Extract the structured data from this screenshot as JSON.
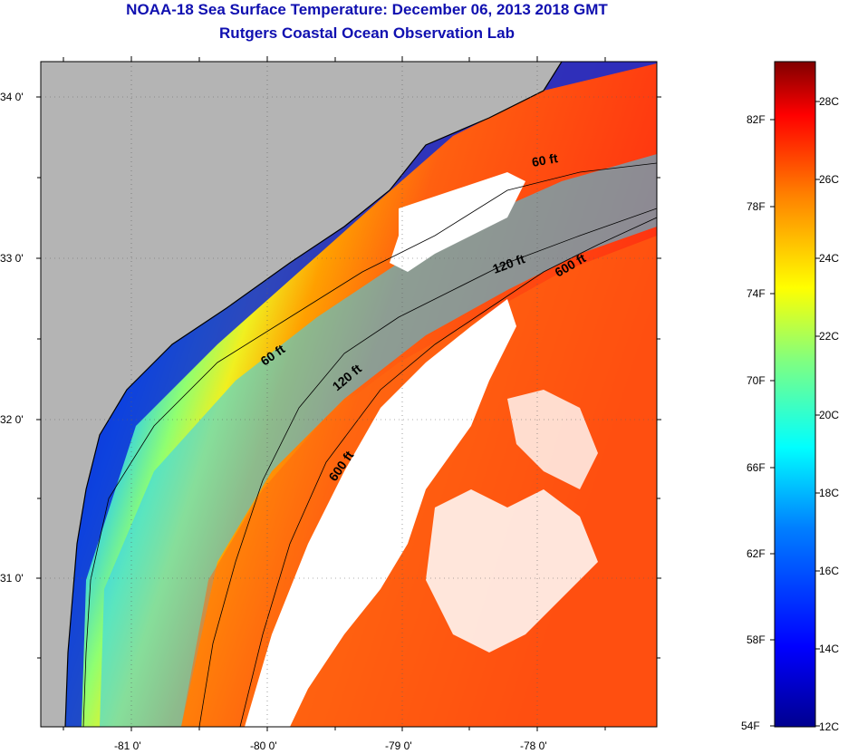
{
  "title": {
    "line1": "NOAA-18 Sea Surface Temperature:  December 06, 2013 2018 GMT",
    "line2": "Rutgers Coastal Ocean Observation Lab"
  },
  "map": {
    "latitude_labels": [
      "34 0'",
      "33 0'",
      "32 0'",
      "31 0'"
    ],
    "longitude_labels": [
      "-81 0'",
      "-80 0'",
      "-79 0'",
      "-78 0'"
    ],
    "isobath_labels": [
      {
        "text": "60 ft"
      },
      {
        "text": "120 ft"
      },
      {
        "text": "600 ft"
      },
      {
        "text": "60 ft"
      },
      {
        "text": "120 ft"
      },
      {
        "text": "600 ft"
      }
    ]
  },
  "colorbar": {
    "fahrenheit_labels": [
      "54F",
      "58F",
      "62F",
      "66F",
      "70F",
      "74F",
      "78F",
      "82F"
    ],
    "celsius_labels": [
      "12C",
      "14C",
      "16C",
      "18C",
      "20C",
      "22C",
      "24C",
      "26C",
      "28C"
    ],
    "colors": [
      "#00008f",
      "#0000ff",
      "#0080ff",
      "#00ffff",
      "#80ff80",
      "#ffff00",
      "#ff8000",
      "#ff0000",
      "#800000"
    ]
  },
  "colors": {
    "land": "#b4b4b4",
    "cloud": "#ffffff",
    "title": "#1010b0"
  }
}
